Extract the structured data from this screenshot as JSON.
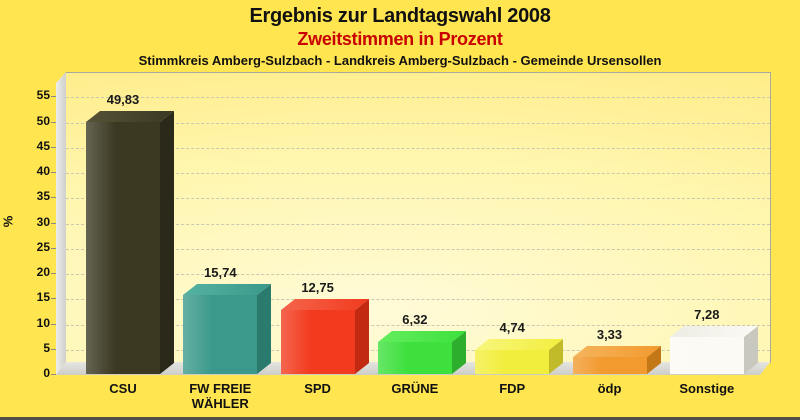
{
  "header": {
    "title": "Ergebnis zur Landtagswahl 2008",
    "subtitle": "Zweitstimmen in Prozent",
    "region_line": "Stimmkreis Amberg-Sulzbach - Landkreis Amberg-Sulzbach - Gemeinde Ursensollen"
  },
  "colors": {
    "background": "#FFE550",
    "subtitle_text": "#C80000",
    "grid": "#C9C9B2",
    "wall": "#DCDCD8",
    "floor": "#D8D8D3"
  },
  "chart_data": {
    "type": "bar",
    "projection": "3d",
    "title": "Ergebnis zur Landtagswahl 2008",
    "subtitle": "Zweitstimmen in Prozent",
    "annotation": "Stimmkreis Amberg-Sulzbach - Landkreis Amberg-Sulzbach - Gemeinde Ursensollen",
    "ylabel": "%",
    "ylim": [
      0,
      59
    ],
    "yticks": [
      0,
      5,
      10,
      15,
      20,
      25,
      30,
      35,
      40,
      45,
      50,
      55
    ],
    "grid": "horizontal-dashed",
    "legend": false,
    "categories": [
      "CSU",
      "FW FREIE WÄHLER",
      "SPD",
      "GRÜNE",
      "FDP",
      "ödp",
      "Sonstige"
    ],
    "category_label_lines": [
      [
        "CSU"
      ],
      [
        "FW FREIE",
        "WÄHLER"
      ],
      [
        "SPD"
      ],
      [
        "GRÜNE"
      ],
      [
        "FDP"
      ],
      [
        "ödp"
      ],
      [
        "Sonstige"
      ]
    ],
    "values": [
      49.83,
      15.74,
      12.75,
      6.32,
      4.74,
      3.33,
      7.28
    ],
    "value_labels": [
      "49,83",
      "15,74",
      "12,75",
      "6,32",
      "4,74",
      "3,33",
      "7,28"
    ],
    "bar_colors": [
      {
        "front": "#3B3922",
        "top": "#555236",
        "side": "#2A291A"
      },
      {
        "front": "#3A998A",
        "top": "#55B2A3",
        "side": "#2B7A6E"
      },
      {
        "front": "#F23B1E",
        "top": "#F4654C",
        "side": "#C22A12"
      },
      {
        "front": "#3DE03D",
        "top": "#63EE5E",
        "side": "#2DAE2D"
      },
      {
        "front": "#F2EE3E",
        "top": "#F8F67C",
        "side": "#C2BB29"
      },
      {
        "front": "#F29A2E",
        "top": "#F5B45C",
        "side": "#C47716"
      },
      {
        "front": "#FBFAF4",
        "top": "#EDECE4",
        "side": "#C9C8BE"
      }
    ]
  }
}
